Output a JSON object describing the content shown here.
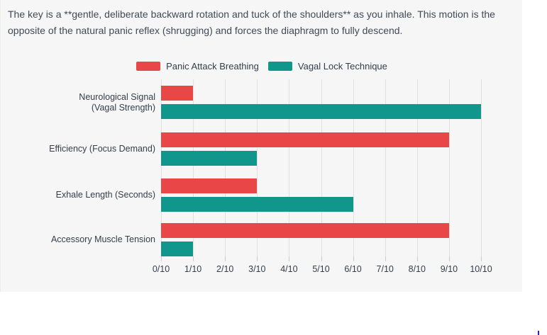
{
  "intro": {
    "text": "The key is a **gentle, deliberate backward rotation and tuck of the shoulders** as you inhale. This motion is the opposite of the natural panic reflex (shrugging) and forces the diaphragm to fully descend."
  },
  "colors": {
    "panel_bg": "#f6f6f6",
    "grid_line": "#e0e0e0",
    "tick_mark": "#cccccc",
    "text_primary": "#3f4a56",
    "label_text": "#333e4a",
    "panic_red": "#e94747",
    "vagal_teal": "#10968a",
    "artifact_blue": "#2424dd"
  },
  "chart_data": {
    "type": "bar",
    "orientation": "horizontal",
    "title": "",
    "categories": [
      "Neurological Signal (Vagal Strength)",
      "Efficiency (Focus Demand)",
      "Exhale Length (Seconds)",
      "Accessory Muscle Tension"
    ],
    "category_lines": [
      [
        "Neurological Signal",
        "(Vagal Strength)"
      ],
      [
        "Efficiency (Focus Demand)"
      ],
      [
        "Exhale Length (Seconds)"
      ],
      [
        "Accessory Muscle Tension"
      ]
    ],
    "series": [
      {
        "name": "Panic Attack Breathing",
        "color": "#e94747",
        "values": [
          1,
          9,
          3,
          9
        ]
      },
      {
        "name": "Vagal Lock Technique",
        "color": "#10968a",
        "values": [
          10,
          3,
          6,
          1
        ]
      }
    ],
    "x_tick_labels": [
      "0/10",
      "1/10",
      "2/10",
      "3/10",
      "4/10",
      "5/10",
      "6/10",
      "7/10",
      "8/10",
      "9/10",
      "10/10"
    ],
    "xlim": [
      0,
      10
    ],
    "grid": true,
    "legend_position": "top-center"
  }
}
